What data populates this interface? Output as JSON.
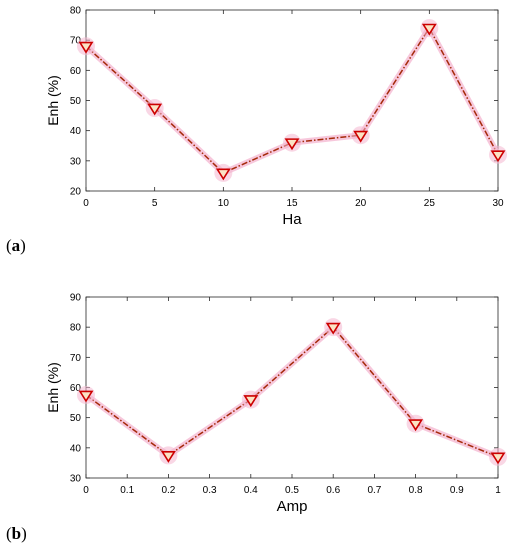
{
  "chart_data": [
    {
      "type": "line",
      "panel_label": "a",
      "xlabel": "Ha",
      "ylabel": "Enh (%)",
      "x": [
        0,
        5,
        10,
        15,
        20,
        25,
        30
      ],
      "series": [
        {
          "values": [
            68,
            47.5,
            26,
            36,
            38.5,
            74,
            32
          ]
        }
      ],
      "xlim": [
        0,
        30
      ],
      "ylim": [
        20,
        80
      ],
      "xticks": [
        "0",
        "5",
        "10",
        "15",
        "20",
        "25",
        "30"
      ],
      "yticks": [
        "20",
        "30",
        "40",
        "50",
        "60",
        "70",
        "80"
      ],
      "grid": false,
      "line_color": "#a52a0a",
      "marker": "triangle-down",
      "marker_color": "#cc0000",
      "glow_color": "#f4b6d0"
    },
    {
      "type": "line",
      "panel_label": "b",
      "xlabel": "Amp",
      "ylabel": "Enh (%)",
      "x": [
        0,
        0.2,
        0.4,
        0.6,
        0.8,
        1
      ],
      "series": [
        {
          "values": [
            57.5,
            37.5,
            56,
            80,
            48,
            37
          ]
        }
      ],
      "xlim": [
        0,
        1
      ],
      "ylim": [
        30,
        90
      ],
      "xticks": [
        "0",
        "0.1",
        "0.2",
        "0.3",
        "0.4",
        "0.5",
        "0.6",
        "0.7",
        "0.8",
        "0.9",
        "1"
      ],
      "yticks": [
        "30",
        "40",
        "50",
        "60",
        "70",
        "80",
        "90"
      ],
      "grid": false,
      "line_color": "#a52a0a",
      "marker": "triangle-down",
      "marker_color": "#cc0000",
      "glow_color": "#f4b6d0"
    }
  ]
}
